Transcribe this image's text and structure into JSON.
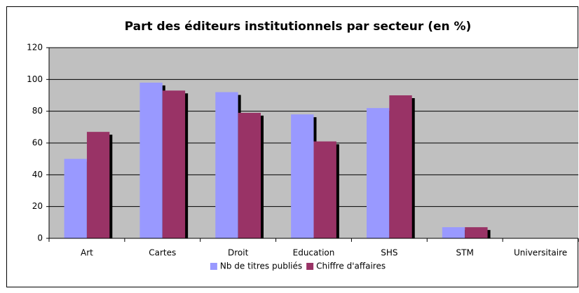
{
  "chart_data": {
    "type": "bar",
    "title": "Part des éditeurs institutionnels par secteur (en %)",
    "categories": [
      "Art",
      "Cartes",
      "Droit",
      "Education",
      "SHS",
      "STM",
      "Universitaire"
    ],
    "series": [
      {
        "name": "Nb de titres publiés",
        "color": "#9999ff",
        "values": [
          50,
          98,
          92,
          78,
          82,
          7,
          0
        ]
      },
      {
        "name": "Chiffre d'affaires",
        "color": "#993366",
        "values": [
          67,
          93,
          79,
          61,
          90,
          7,
          0
        ]
      }
    ],
    "ylim": [
      0,
      120
    ],
    "yticks": [
      0,
      20,
      40,
      60,
      80,
      100,
      120
    ],
    "grid": true,
    "legend": "bottom"
  }
}
